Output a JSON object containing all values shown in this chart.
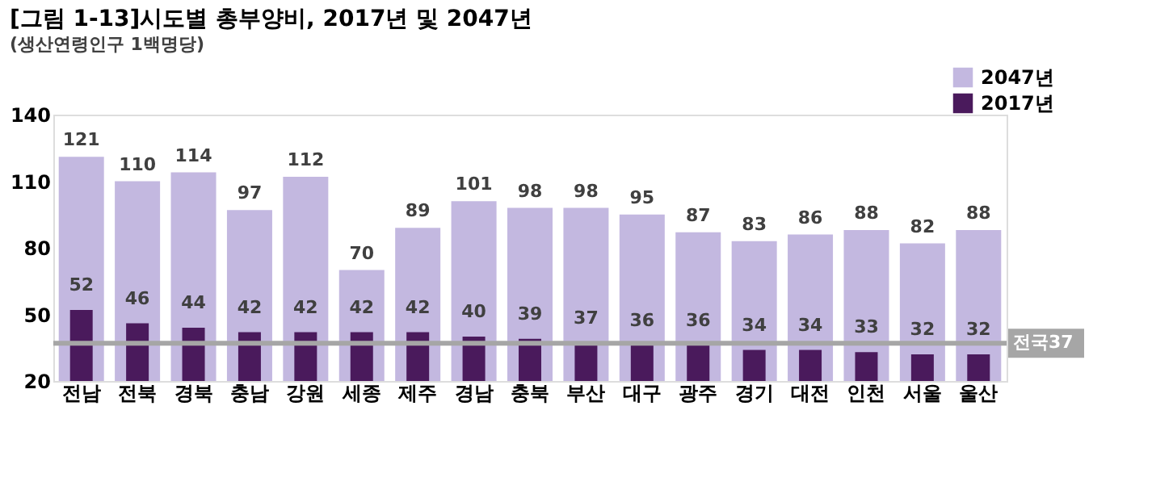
{
  "chart_data": {
    "type": "bar",
    "title": "[그림 1-13]시도별 총부양비, 2017년 및 2047년",
    "subtitle": "(생산연령인구 1백명당)",
    "categories": [
      "전남",
      "전북",
      "경북",
      "충남",
      "강원",
      "세종",
      "제주",
      "경남",
      "충북",
      "부산",
      "대구",
      "광주",
      "경기",
      "대전",
      "인천",
      "서울",
      "울산"
    ],
    "series": [
      {
        "name": "2047년",
        "color": "#c3b8e0",
        "values": [
          121,
          110,
          114,
          97,
          112,
          70,
          89,
          101,
          98,
          98,
          95,
          87,
          83,
          86,
          88,
          82,
          88
        ]
      },
      {
        "name": "2017년",
        "color": "#4a1a5c",
        "values": [
          52,
          46,
          44,
          42,
          42,
          42,
          42,
          40,
          39,
          37,
          36,
          36,
          34,
          34,
          33,
          32,
          32
        ]
      }
    ],
    "ylim": [
      20,
      140
    ],
    "yticks": [
      20,
      50,
      80,
      110,
      140
    ],
    "grid": false,
    "legend": "top right",
    "data_labels": true,
    "ref_lines": [
      {
        "axis": "y",
        "value": 37,
        "label": "전국37",
        "color": "#a6a6a6"
      }
    ]
  }
}
